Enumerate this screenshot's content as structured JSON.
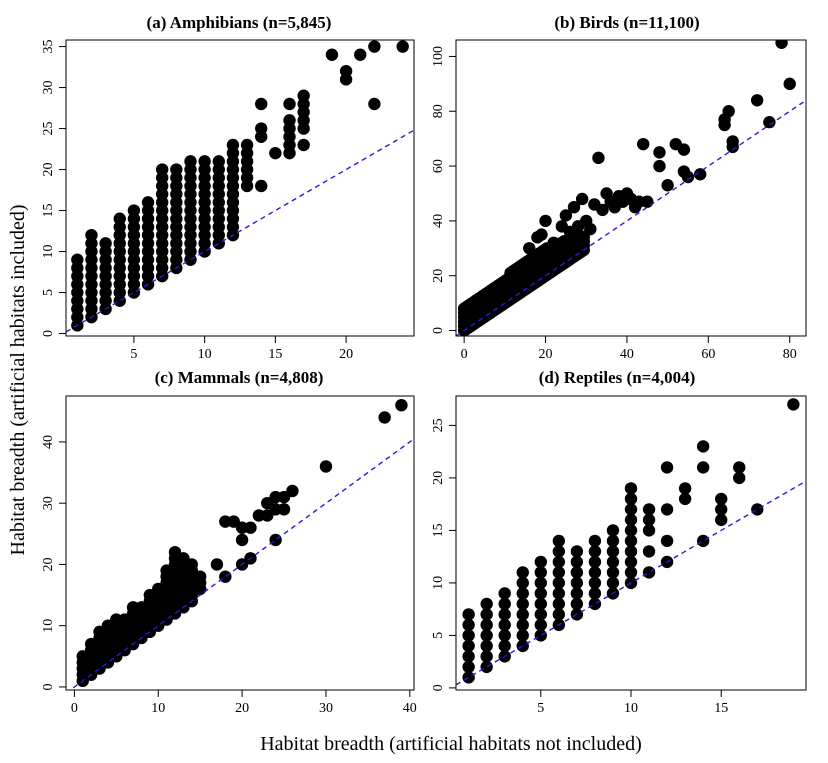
{
  "figure": {
    "xlabel": "Habitat breadth (artificial habitats not included)",
    "ylabel": "Habitat breadth (artificial habitats included)"
  },
  "chart_data": [
    {
      "type": "scatter",
      "title": "(a) Amphibians (n=5,845)",
      "xlim": [
        0.2,
        24.8
      ],
      "ylim": [
        -0.3,
        35.8
      ],
      "xticks": [
        5,
        10,
        15,
        20
      ],
      "yticks": [
        0,
        5,
        10,
        15,
        20,
        25,
        30,
        35
      ],
      "reference_line": {
        "slope": 1,
        "intercept": 0,
        "color": "#1f1fd6",
        "style": "dashed"
      },
      "point_color": "#000000",
      "columns": [
        {
          "x": 1,
          "y_min": 1,
          "y_max": 9
        },
        {
          "x": 2,
          "y_min": 2,
          "y_max": 12
        },
        {
          "x": 3,
          "y_min": 3,
          "y_max": 11
        },
        {
          "x": 4,
          "y_min": 4,
          "y_max": 14
        },
        {
          "x": 5,
          "y_min": 5,
          "y_max": 15
        },
        {
          "x": 6,
          "y_min": 6,
          "y_max": 16
        },
        {
          "x": 7,
          "y_min": 7,
          "y_max": 20
        },
        {
          "x": 8,
          "y_min": 8,
          "y_max": 20
        },
        {
          "x": 9,
          "y_min": 9,
          "y_max": 21
        },
        {
          "x": 10,
          "y_min": 10,
          "y_max": 21
        },
        {
          "x": 11,
          "y_min": 11,
          "y_max": 21
        },
        {
          "x": 12,
          "y_min": 12,
          "y_max": 23
        },
        {
          "x": 13,
          "y_min": 18,
          "y_max": 23
        }
      ],
      "points": [
        [
          14,
          18
        ],
        [
          14,
          24
        ],
        [
          14,
          25
        ],
        [
          14,
          28
        ],
        [
          15,
          22
        ],
        [
          16,
          22
        ],
        [
          16,
          23
        ],
        [
          16,
          24
        ],
        [
          16,
          25
        ],
        [
          16,
          26
        ],
        [
          16,
          28
        ],
        [
          17,
          23
        ],
        [
          17,
          25
        ],
        [
          17,
          26
        ],
        [
          17,
          27
        ],
        [
          17,
          28
        ],
        [
          17,
          29
        ],
        [
          19,
          34
        ],
        [
          20,
          31
        ],
        [
          20,
          32
        ],
        [
          21,
          34
        ],
        [
          22,
          28
        ],
        [
          22,
          35
        ],
        [
          24,
          35
        ]
      ]
    },
    {
      "type": "scatter",
      "title": "(b) Birds (n=11,100)",
      "xlim": [
        -2,
        84
      ],
      "ylim": [
        -2,
        106
      ],
      "xticks": [
        0,
        20,
        40,
        60,
        80
      ],
      "yticks": [
        0,
        20,
        40,
        60,
        80,
        100
      ],
      "reference_line": {
        "slope": 1,
        "intercept": 0,
        "color": "#1f1fd6",
        "style": "dashed"
      },
      "point_color": "#000000",
      "bands": [
        {
          "x_min": 0,
          "x_max": 15,
          "y_low_slope": 1,
          "y_high": [
            [
              0,
              8
            ],
            [
              3,
              12
            ],
            [
              6,
              15
            ],
            [
              9,
              18
            ],
            [
              12,
              22
            ],
            [
              15,
              25
            ]
          ]
        },
        {
          "x_min": 15,
          "x_max": 30,
          "y_low_slope": 1,
          "y_high": [
            [
              15,
              25
            ],
            [
              20,
              30
            ],
            [
              25,
              33
            ],
            [
              30,
              35
            ]
          ]
        }
      ],
      "points": [
        [
          16,
          30
        ],
        [
          18,
          34
        ],
        [
          19,
          35
        ],
        [
          20,
          40
        ],
        [
          22,
          32
        ],
        [
          24,
          38
        ],
        [
          25,
          42
        ],
        [
          26,
          36
        ],
        [
          27,
          45
        ],
        [
          28,
          38
        ],
        [
          29,
          48
        ],
        [
          30,
          40
        ],
        [
          31,
          37
        ],
        [
          32,
          46
        ],
        [
          33,
          63
        ],
        [
          34,
          44
        ],
        [
          35,
          50
        ],
        [
          36,
          47
        ],
        [
          37,
          45
        ],
        [
          38,
          49
        ],
        [
          39,
          47
        ],
        [
          40,
          50
        ],
        [
          41,
          48
        ],
        [
          42,
          45
        ],
        [
          43,
          47
        ],
        [
          44,
          68
        ],
        [
          45,
          47
        ],
        [
          48,
          65
        ],
        [
          48,
          60
        ],
        [
          50,
          53
        ],
        [
          52,
          68
        ],
        [
          54,
          66
        ],
        [
          54,
          58
        ],
        [
          55,
          56
        ],
        [
          58,
          57
        ],
        [
          64,
          75
        ],
        [
          64,
          77
        ],
        [
          65,
          80
        ],
        [
          66,
          69
        ],
        [
          66,
          67
        ],
        [
          72,
          84
        ],
        [
          75,
          76
        ],
        [
          78,
          105
        ],
        [
          80,
          90
        ]
      ]
    },
    {
      "type": "scatter",
      "title": "(c) Mammals (n=4,808)",
      "xlim": [
        -1,
        40.5
      ],
      "ylim": [
        -0.5,
        47.5
      ],
      "xticks": [
        0,
        10,
        20,
        30,
        40
      ],
      "yticks": [
        0,
        10,
        20,
        30,
        40
      ],
      "reference_line": {
        "slope": 1,
        "intercept": 0,
        "color": "#1f1fd6",
        "style": "dashed"
      },
      "point_color": "#000000",
      "columns": [
        {
          "x": 1,
          "y_min": 1,
          "y_max": 5
        },
        {
          "x": 2,
          "y_min": 2,
          "y_max": 7
        },
        {
          "x": 3,
          "y_min": 3,
          "y_max": 9
        },
        {
          "x": 4,
          "y_min": 4,
          "y_max": 10
        },
        {
          "x": 5,
          "y_min": 5,
          "y_max": 11
        },
        {
          "x": 6,
          "y_min": 6,
          "y_max": 11
        },
        {
          "x": 7,
          "y_min": 7,
          "y_max": 13
        },
        {
          "x": 8,
          "y_min": 8,
          "y_max": 13
        },
        {
          "x": 9,
          "y_min": 9,
          "y_max": 15
        },
        {
          "x": 10,
          "y_min": 10,
          "y_max": 16
        },
        {
          "x": 11,
          "y_min": 11,
          "y_max": 19
        },
        {
          "x": 12,
          "y_min": 12,
          "y_max": 22
        },
        {
          "x": 13,
          "y_min": 13,
          "y_max": 21
        },
        {
          "x": 14,
          "y_min": 14,
          "y_max": 20
        },
        {
          "x": 15,
          "y_min": 16,
          "y_max": 18
        }
      ],
      "points": [
        [
          17,
          20
        ],
        [
          18,
          18
        ],
        [
          18,
          27
        ],
        [
          19,
          27
        ],
        [
          20,
          20
        ],
        [
          20,
          24
        ],
        [
          20,
          26
        ],
        [
          21,
          21
        ],
        [
          21,
          26
        ],
        [
          22,
          28
        ],
        [
          23,
          28
        ],
        [
          23,
          30
        ],
        [
          24,
          24
        ],
        [
          24,
          29
        ],
        [
          24,
          31
        ],
        [
          25,
          31
        ],
        [
          25,
          29
        ],
        [
          26,
          32
        ],
        [
          30,
          36
        ],
        [
          37,
          44
        ],
        [
          39,
          46
        ]
      ]
    },
    {
      "type": "scatter",
      "title": "(d) Reptiles (n=4,004)",
      "xlim": [
        0.3,
        19.7
      ],
      "ylim": [
        -0.2,
        27.8
      ],
      "xticks": [
        5,
        10,
        15
      ],
      "yticks": [
        0,
        5,
        10,
        15,
        20,
        25
      ],
      "reference_line": {
        "slope": 1,
        "intercept": 0,
        "color": "#1f1fd6",
        "style": "dashed"
      },
      "point_color": "#000000",
      "columns": [
        {
          "x": 1,
          "y_min": 1,
          "y_max": 7
        },
        {
          "x": 2,
          "y_min": 2,
          "y_max": 8
        },
        {
          "x": 3,
          "y_min": 3,
          "y_max": 9
        },
        {
          "x": 4,
          "y_min": 4,
          "y_max": 11
        },
        {
          "x": 5,
          "y_min": 5,
          "y_max": 12
        },
        {
          "x": 6,
          "y_min": 6,
          "y_max": 14
        },
        {
          "x": 7,
          "y_min": 7,
          "y_max": 13
        },
        {
          "x": 8,
          "y_min": 8,
          "y_max": 14
        },
        {
          "x": 9,
          "y_min": 9,
          "y_max": 15
        },
        {
          "x": 10,
          "y_min": 10,
          "y_max": 19
        }
      ],
      "points": [
        [
          11,
          11
        ],
        [
          11,
          13
        ],
        [
          11,
          15
        ],
        [
          11,
          16
        ],
        [
          11,
          17
        ],
        [
          12,
          12
        ],
        [
          12,
          14
        ],
        [
          12,
          17
        ],
        [
          12,
          21
        ],
        [
          13,
          18
        ],
        [
          13,
          19
        ],
        [
          14,
          14
        ],
        [
          14,
          21
        ],
        [
          14,
          23
        ],
        [
          15,
          16
        ],
        [
          15,
          17
        ],
        [
          15,
          18
        ],
        [
          16,
          20
        ],
        [
          16,
          21
        ],
        [
          17,
          17
        ],
        [
          19,
          27
        ]
      ]
    }
  ]
}
